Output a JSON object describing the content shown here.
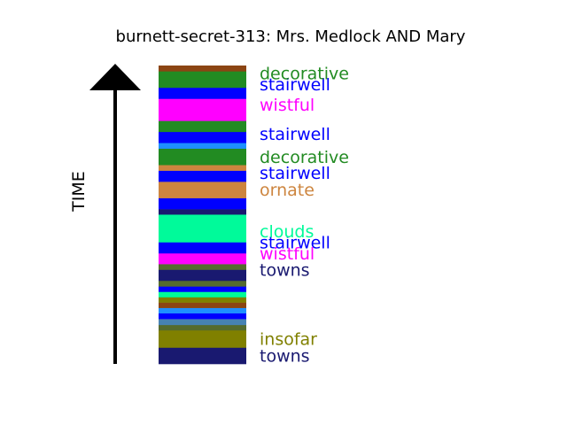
{
  "title": "burnett-secret-313: Mrs. Medlock AND Mary",
  "axis_label": "TIME",
  "chart_data": {
    "type": "stacked-timeline",
    "direction": "bottom-to-top",
    "segments": [
      {
        "name": "towns",
        "color": "#191970",
        "start": 0.0,
        "end": 5.5
      },
      {
        "name": "insofar",
        "color": "#808000",
        "start": 5.5,
        "end": 11.3
      },
      {
        "name": "",
        "color": "#556B2F",
        "start": 11.3,
        "end": 13.1
      },
      {
        "name": "",
        "color": "#4682B4",
        "start": 13.1,
        "end": 15.1
      },
      {
        "name": "",
        "color": "#0000FF",
        "start": 15.1,
        "end": 17.0
      },
      {
        "name": "",
        "color": "#1E90FF",
        "start": 17.0,
        "end": 18.8
      },
      {
        "name": "",
        "color": "#8B4513",
        "start": 18.8,
        "end": 20.6
      },
      {
        "name": "",
        "color": "#808000",
        "start": 20.6,
        "end": 22.4
      },
      {
        "name": "",
        "color": "#00FA9A",
        "start": 22.4,
        "end": 24.2
      },
      {
        "name": "",
        "color": "#0000FF",
        "start": 24.2,
        "end": 26.0
      },
      {
        "name": "",
        "color": "#556B2F",
        "start": 26.0,
        "end": 27.9
      },
      {
        "name": "towns",
        "color": "#191970",
        "start": 27.9,
        "end": 31.6
      },
      {
        "name": "",
        "color": "#556B2F",
        "start": 31.6,
        "end": 33.5
      },
      {
        "name": "wistful",
        "color": "#FF00FF",
        "start": 33.5,
        "end": 37.1
      },
      {
        "name": "stairwell",
        "color": "#0000FF",
        "start": 37.1,
        "end": 40.8
      },
      {
        "name": "clouds",
        "color": "#00FA9A",
        "start": 40.8,
        "end": 50.1
      },
      {
        "name": "",
        "color": "#191970",
        "start": 50.1,
        "end": 51.9
      },
      {
        "name": "",
        "color": "#0000FF",
        "start": 51.9,
        "end": 55.6
      },
      {
        "name": "ornate",
        "color": "#CD853F",
        "start": 55.6,
        "end": 61.1
      },
      {
        "name": "stairwell",
        "color": "#0000FF",
        "start": 61.1,
        "end": 64.8
      },
      {
        "name": "",
        "color": "#CD853F",
        "start": 64.8,
        "end": 66.7
      },
      {
        "name": "decorative",
        "color": "#228B22",
        "start": 66.7,
        "end": 72.2
      },
      {
        "name": "",
        "color": "#1E90FF",
        "start": 72.2,
        "end": 74.1
      },
      {
        "name": "stairwell",
        "color": "#0000FF",
        "start": 74.1,
        "end": 77.8
      },
      {
        "name": "",
        "color": "#228B22",
        "start": 77.8,
        "end": 81.5
      },
      {
        "name": "wistful",
        "color": "#FF00FF",
        "start": 81.5,
        "end": 88.9
      },
      {
        "name": "stairwell",
        "color": "#0000FF",
        "start": 88.9,
        "end": 92.6
      },
      {
        "name": "decorative",
        "color": "#228B22",
        "start": 92.6,
        "end": 98.1
      },
      {
        "name": "",
        "color": "#8B4513",
        "start": 98.1,
        "end": 100.0
      }
    ],
    "labels": [
      {
        "text": "towns",
        "color": "#191970",
        "at": 2.75
      },
      {
        "text": "insofar",
        "color": "#808000",
        "at": 8.4
      },
      {
        "text": "towns",
        "color": "#191970",
        "at": 31.6
      },
      {
        "text": "wistful",
        "color": "#FF00FF",
        "at": 37.1
      },
      {
        "text": "stairwell",
        "color": "#0000FF",
        "at": 40.8
      },
      {
        "text": "clouds",
        "color": "#00FA9A",
        "at": 44.5
      },
      {
        "text": "ornate",
        "color": "#CD853F",
        "at": 58.4
      },
      {
        "text": "stairwell",
        "color": "#0000FF",
        "at": 64.1
      },
      {
        "text": "decorative",
        "color": "#228B22",
        "at": 69.5
      },
      {
        "text": "stairwell",
        "color": "#0000FF",
        "at": 77.2
      },
      {
        "text": "wistful",
        "color": "#FF00FF",
        "at": 87.0
      },
      {
        "text": "stairwell",
        "color": "#0000FF",
        "at": 93.7
      },
      {
        "text": "decorative",
        "color": "#228B22",
        "at": 97.5
      }
    ]
  }
}
